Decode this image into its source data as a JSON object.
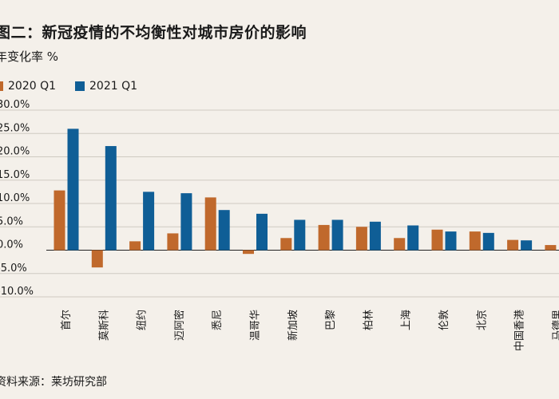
{
  "chart_data": {
    "type": "bar",
    "title": "图二：新冠疫情的不均衡性对城市房价的影响",
    "ylabel": "年变化率 %",
    "source": "资料来源：莱坊研究部",
    "categories": [
      "首尔",
      "莫斯科",
      "纽约",
      "迈阿密",
      "悉尼",
      "温哥华",
      "新加坡",
      "巴黎",
      "柏林",
      "上海",
      "伦敦",
      "北京",
      "中国香港",
      "马德里"
    ],
    "series": [
      {
        "name": "2020 Q1",
        "color": "#c0692c",
        "values": [
          12.8,
          -3.7,
          1.9,
          3.6,
          11.3,
          -0.8,
          2.6,
          5.4,
          5.0,
          2.6,
          4.4,
          4.0,
          2.2,
          1.1
        ]
      },
      {
        "name": "2021 Q1",
        "color": "#0f5e96",
        "values": [
          26.0,
          22.3,
          12.5,
          12.2,
          8.6,
          7.8,
          6.5,
          6.5,
          6.1,
          5.3,
          4.0,
          3.7,
          2.1,
          null
        ]
      }
    ],
    "ylim": [
      -10,
      30
    ],
    "yticks": [
      -10,
      -5,
      0,
      5,
      10,
      15,
      20,
      25,
      30
    ],
    "ytick_labels": [
      "-10.0%",
      "-5.0%",
      "0.0%",
      "5.0%",
      "10.0%",
      "15.0%",
      "20.0%",
      "25.0%",
      "30.0%"
    ],
    "grid": true,
    "legend_position": "top-left"
  }
}
